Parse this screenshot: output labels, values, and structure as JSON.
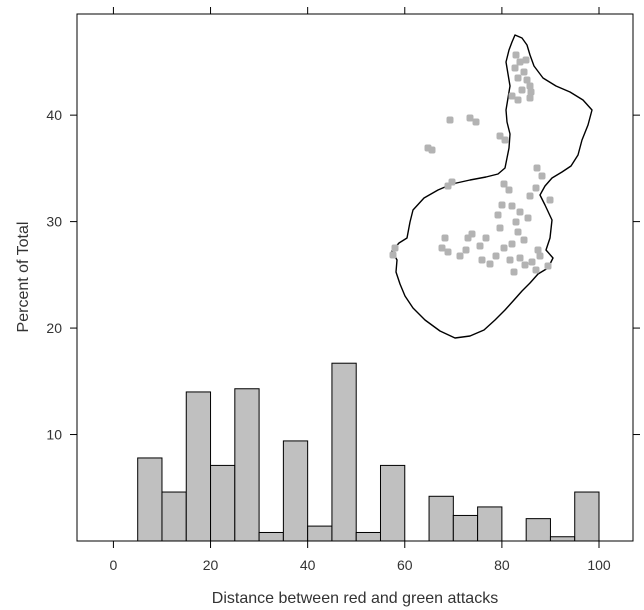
{
  "chart_data": {
    "type": "bar",
    "xlabel": "Distance between red and green attacks",
    "ylabel": "Percent of Total",
    "xlim": [
      -7.5,
      107
    ],
    "ylim": [
      0,
      49.5
    ],
    "x_ticks": [
      0,
      20,
      40,
      60,
      80,
      100
    ],
    "y_ticks": [
      10,
      20,
      30,
      40
    ],
    "bin_width": 5,
    "bins": [
      {
        "start": 5,
        "end": 10,
        "value": 7.8
      },
      {
        "start": 10,
        "end": 15,
        "value": 4.6
      },
      {
        "start": 15,
        "end": 20,
        "value": 14.0
      },
      {
        "start": 20,
        "end": 25,
        "value": 7.1
      },
      {
        "start": 25,
        "end": 30,
        "value": 14.3
      },
      {
        "start": 30,
        "end": 35,
        "value": 0.8
      },
      {
        "start": 35,
        "end": 40,
        "value": 9.4
      },
      {
        "start": 40,
        "end": 45,
        "value": 1.4
      },
      {
        "start": 45,
        "end": 50,
        "value": 16.7
      },
      {
        "start": 50,
        "end": 55,
        "value": 0.8
      },
      {
        "start": 55,
        "end": 60,
        "value": 7.1
      },
      {
        "start": 60,
        "end": 65,
        "value": 0
      },
      {
        "start": 65,
        "end": 70,
        "value": 4.2
      },
      {
        "start": 70,
        "end": 75,
        "value": 2.4
      },
      {
        "start": 75,
        "end": 80,
        "value": 3.2
      },
      {
        "start": 80,
        "end": 85,
        "value": 0
      },
      {
        "start": 85,
        "end": 90,
        "value": 2.1
      },
      {
        "start": 90,
        "end": 95,
        "value": 0.4
      },
      {
        "start": 95,
        "end": 100,
        "value": 4.6
      }
    ],
    "bar_fill": "#c0c0c0",
    "bar_stroke": "#000000",
    "inset": {
      "type": "map",
      "outline_color": "#000000",
      "point_color": "#b3b3b3"
    }
  }
}
